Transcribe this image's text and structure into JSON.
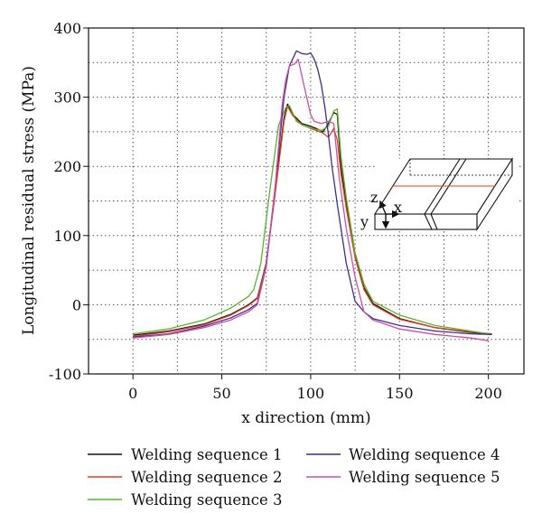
{
  "chart_data": {
    "type": "line",
    "title": "",
    "xlabel": "x direction (mm)",
    "ylabel": "Longitudinal residual stress (MPa)",
    "xlim": [
      -25,
      220
    ],
    "ylim": [
      -100,
      400
    ],
    "xticks": [
      0,
      50,
      100,
      150,
      200
    ],
    "yticks": [
      -100,
      0,
      100,
      200,
      300,
      400
    ],
    "grid": true,
    "legend_position": "bottom",
    "series": [
      {
        "name": "Welding sequence 1",
        "color": "#111111",
        "x": [
          0,
          20,
          40,
          55,
          65,
          70,
          75,
          80,
          85,
          87,
          90,
          95,
          100,
          103,
          107,
          110,
          113,
          115,
          117,
          120,
          125,
          130,
          135,
          150,
          170,
          190,
          202
        ],
        "y": [
          -44,
          -38,
          -28,
          -14,
          0,
          10,
          60,
          165,
          270,
          290,
          275,
          262,
          258,
          255,
          250,
          262,
          278,
          275,
          200,
          145,
          70,
          25,
          2,
          -20,
          -33,
          -40,
          -43
        ]
      },
      {
        "name": "Welding sequence 2",
        "color": "#e0401a",
        "x": [
          0,
          20,
          40,
          55,
          65,
          70,
          75,
          80,
          85,
          87,
          90,
          95,
          100,
          103,
          107,
          110,
          113,
          115,
          117,
          120,
          125,
          130,
          135,
          150,
          170,
          190,
          202
        ],
        "y": [
          -46,
          -39,
          -29,
          -15,
          -1,
          9,
          58,
          160,
          265,
          287,
          273,
          260,
          255,
          252,
          248,
          242,
          255,
          238,
          190,
          140,
          68,
          22,
          0,
          -21,
          -33,
          -39,
          -42
        ]
      },
      {
        "name": "Welding sequence 3",
        "color": "#5ab22e",
        "x": [
          0,
          20,
          40,
          55,
          65,
          68,
          72,
          77,
          82,
          86,
          88,
          92,
          97,
          102,
          106,
          110,
          113,
          115,
          117,
          120,
          125,
          130,
          135,
          150,
          170,
          190,
          202
        ],
        "y": [
          -42,
          -35,
          -22,
          -5,
          12,
          22,
          60,
          165,
          260,
          285,
          288,
          265,
          258,
          254,
          252,
          258,
          280,
          283,
          215,
          155,
          75,
          30,
          5,
          -15,
          -30,
          -38,
          -43
        ]
      },
      {
        "name": "Welding sequence 4",
        "color": "#3d2c8f",
        "x": [
          0,
          20,
          40,
          55,
          65,
          70,
          75,
          80,
          85,
          88,
          92,
          95,
          98,
          100,
          102,
          104,
          106,
          108,
          110,
          112,
          115,
          120,
          125,
          130,
          135,
          150,
          170,
          190,
          202
        ],
        "y": [
          -47,
          -42,
          -31,
          -19,
          -7,
          2,
          55,
          170,
          300,
          345,
          367,
          363,
          362,
          364,
          355,
          340,
          318,
          285,
          245,
          200,
          145,
          60,
          5,
          -10,
          -20,
          -30,
          -38,
          -42,
          -43
        ]
      },
      {
        "name": "Welding sequence 5",
        "color": "#c94fa8",
        "x": [
          0,
          20,
          40,
          55,
          65,
          70,
          75,
          80,
          84,
          86,
          88,
          91,
          93,
          96,
          100,
          102,
          106,
          110,
          113,
          116,
          120,
          125,
          130,
          135,
          150,
          170,
          190,
          200
        ],
        "y": [
          -48,
          -43,
          -33,
          -22,
          -10,
          0,
          55,
          170,
          290,
          325,
          345,
          348,
          355,
          320,
          275,
          265,
          262,
          265,
          262,
          185,
          110,
          40,
          -10,
          -22,
          -35,
          -43,
          -48,
          -52
        ]
      }
    ]
  }
}
